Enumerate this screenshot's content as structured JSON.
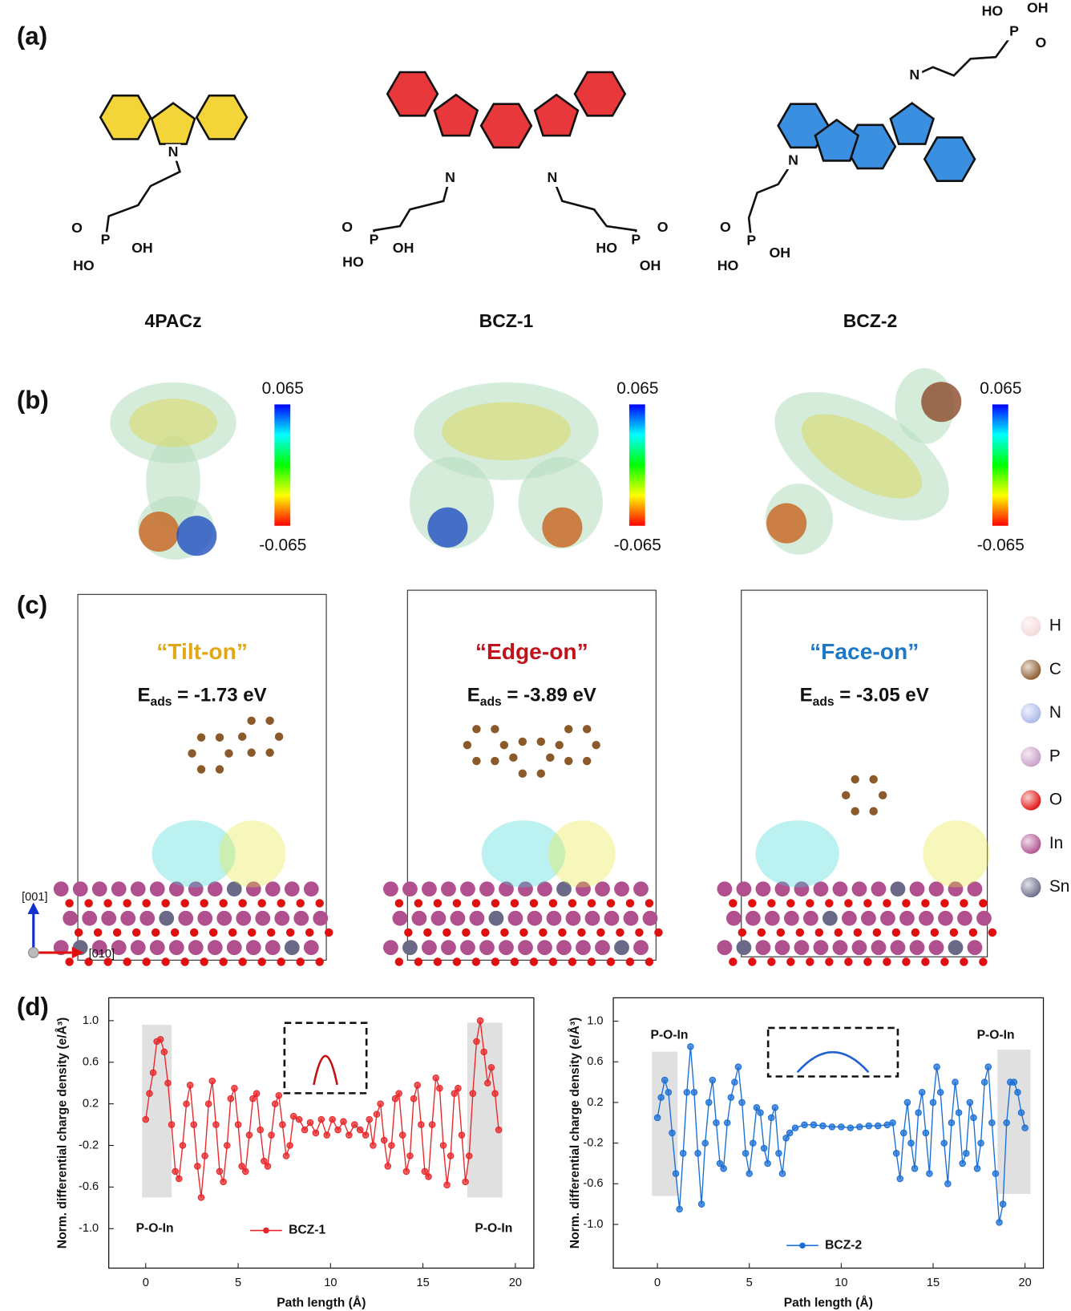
{
  "panel_labels": [
    "(a)",
    "(b)",
    "(c)",
    "(d)"
  ],
  "molecules": [
    {
      "name": "4PACz",
      "color": "#f3d53a",
      "atoms": [
        "N",
        "O",
        "P",
        "OH",
        "HO"
      ],
      "colorbar": {
        "max": 0.065,
        "min": -0.065
      },
      "adsorption": {
        "mode": "“Tilt-on”",
        "mode_color": "#e0a818",
        "energy_symbol": "E",
        "energy_subscript": "ads",
        "energy_text": " = -1.73 eV"
      }
    },
    {
      "name": "BCZ-1",
      "color": "#e8383b",
      "atoms": [
        "N",
        "N",
        "O",
        "P",
        "OH",
        "HO",
        "HO",
        "P",
        "O",
        "OH"
      ],
      "colorbar": {
        "max": 0.065,
        "min": -0.065
      },
      "adsorption": {
        "mode": "“Edge-on”",
        "mode_color": "#c0141c",
        "energy_symbol": "E",
        "energy_subscript": "ads",
        "energy_text": " = -3.89 eV"
      }
    },
    {
      "name": "BCZ-2",
      "color": "#3a8fe0",
      "atoms": [
        "N",
        "N",
        "O",
        "P",
        "OH",
        "HO",
        "HO",
        "OH",
        "P",
        "O"
      ],
      "colorbar": {
        "max": 0.065,
        "min": -0.065
      },
      "adsorption": {
        "mode": "“Face-on”",
        "mode_color": "#1e78c8",
        "energy_symbol": "E",
        "energy_subscript": "ads",
        "energy_text": " = -3.05 eV"
      }
    }
  ],
  "element_legend": [
    {
      "label": "H",
      "color": "#f4d8d8"
    },
    {
      "label": "C",
      "color": "#8b5a2b"
    },
    {
      "label": "N",
      "color": "#aab8e8"
    },
    {
      "label": "P",
      "color": "#c99cc6"
    },
    {
      "label": "O",
      "color": "#e01010"
    },
    {
      "label": "In",
      "color": "#b0508f"
    },
    {
      "label": "Sn",
      "color": "#6a6a88"
    }
  ],
  "axis_labels": [
    "[001]",
    "[010]"
  ],
  "chart_data": [
    {
      "type": "line",
      "xlabel": "Path length (Å)",
      "ylabel": "Norm. differential charge density (e/Å³)",
      "xlim": [
        -2,
        21
      ],
      "ylim": [
        -1.38,
        1.22
      ],
      "xticks": [
        0,
        5,
        10,
        15,
        20
      ],
      "yticks": [
        {
          "value": -1,
          "label": "-1.0"
        },
        -0.6,
        -0.2,
        0.2,
        0.6,
        {
          "value": 1,
          "label": "1.0"
        }
      ],
      "legend": "lower center",
      "annotations": [
        "P-O-In",
        "P-O-In"
      ],
      "highlights": [
        {
          "x": [
            -0.2,
            1.4
          ],
          "y": [
            -0.7,
            0.96
          ]
        },
        {
          "x": [
            17.4,
            19.3
          ],
          "y": [
            -0.7,
            0.98
          ]
        }
      ],
      "x": [
        0.0,
        0.2,
        0.4,
        0.6,
        0.8,
        1.0,
        1.2,
        1.4,
        1.6,
        1.8,
        2.0,
        2.2,
        2.4,
        2.6,
        2.8,
        3.0,
        3.2,
        3.4,
        3.6,
        3.8,
        4.0,
        4.2,
        4.4,
        4.6,
        4.8,
        5.0,
        5.2,
        5.4,
        5.6,
        5.8,
        6.0,
        6.2,
        6.4,
        6.6,
        6.8,
        7.0,
        7.2,
        7.4,
        7.6,
        7.8,
        8.0,
        8.3,
        8.6,
        8.9,
        9.2,
        9.5,
        9.8,
        10.1,
        10.4,
        10.7,
        11.0,
        11.3,
        11.6,
        11.9,
        12.1,
        12.3,
        12.5,
        12.7,
        12.9,
        13.1,
        13.3,
        13.5,
        13.7,
        13.9,
        14.1,
        14.3,
        14.5,
        14.7,
        14.9,
        15.1,
        15.3,
        15.5,
        15.7,
        15.9,
        16.1,
        16.3,
        16.5,
        16.7,
        16.9,
        17.1,
        17.3,
        17.5,
        17.7,
        17.9,
        18.1,
        18.3,
        18.5,
        18.7,
        18.9,
        19.1
      ],
      "series": [
        {
          "name": "BCZ-1",
          "color": "#e8262a",
          "values": [
            0.05,
            0.3,
            0.5,
            0.8,
            0.82,
            0.7,
            0.4,
            0.0,
            -0.45,
            -0.52,
            -0.2,
            0.2,
            0.38,
            0.0,
            -0.4,
            -0.7,
            -0.3,
            0.2,
            0.42,
            0.0,
            -0.45,
            -0.55,
            -0.2,
            0.25,
            0.35,
            0.0,
            -0.4,
            -0.45,
            -0.1,
            0.25,
            0.3,
            -0.05,
            -0.35,
            -0.4,
            -0.1,
            0.2,
            0.28,
            0.0,
            -0.3,
            -0.2,
            0.08,
            0.05,
            -0.05,
            0.02,
            -0.08,
            0.05,
            -0.1,
            0.05,
            -0.05,
            0.03,
            -0.1,
            0.0,
            -0.05,
            -0.1,
            0.05,
            -0.2,
            0.1,
            0.2,
            -0.15,
            -0.4,
            -0.2,
            0.25,
            0.3,
            -0.1,
            -0.45,
            -0.3,
            0.25,
            0.38,
            0.0,
            -0.45,
            -0.5,
            0.0,
            0.45,
            0.35,
            -0.2,
            -0.58,
            -0.3,
            0.3,
            0.35,
            -0.1,
            -0.55,
            -0.3,
            0.3,
            0.8,
            1.0,
            0.7,
            0.4,
            0.55,
            0.3,
            -0.05
          ]
        }
      ]
    },
    {
      "type": "line",
      "xlabel": "Path length (Å)",
      "ylabel": "Norm. differential charge density (e/Å³)",
      "xlim": [
        -2.4,
        21
      ],
      "ylim": [
        -1.43,
        1.23
      ],
      "xticks": [
        0,
        5,
        10,
        15,
        20
      ],
      "yticks": [
        {
          "value": -1,
          "label": "-1.0"
        },
        -0.6,
        -0.2,
        0.2,
        0.6,
        {
          "value": 1,
          "label": "1.0"
        }
      ],
      "legend": "lower center",
      "annotations": [
        "P-O-In",
        "P-O-In"
      ],
      "highlights": [
        {
          "x": [
            -0.3,
            1.1
          ],
          "y": [
            -0.72,
            0.7
          ]
        },
        {
          "x": [
            18.5,
            20.3
          ],
          "y": [
            -0.7,
            0.72
          ]
        }
      ],
      "x": [
        0.0,
        0.2,
        0.4,
        0.6,
        0.8,
        1.0,
        1.2,
        1.4,
        1.6,
        1.8,
        2.0,
        2.2,
        2.4,
        2.6,
        2.8,
        3.0,
        3.2,
        3.4,
        3.6,
        3.8,
        4.0,
        4.2,
        4.4,
        4.6,
        4.8,
        5.0,
        5.2,
        5.4,
        5.6,
        5.8,
        6.0,
        6.2,
        6.4,
        6.6,
        6.8,
        7.0,
        7.2,
        7.5,
        8.0,
        8.5,
        9.0,
        9.5,
        10.0,
        10.5,
        11.0,
        11.5,
        12.0,
        12.5,
        12.8,
        13.0,
        13.2,
        13.4,
        13.6,
        13.8,
        14.0,
        14.2,
        14.4,
        14.6,
        14.8,
        15.0,
        15.2,
        15.4,
        15.6,
        15.8,
        16.0,
        16.2,
        16.4,
        16.6,
        16.8,
        17.0,
        17.2,
        17.4,
        17.6,
        17.8,
        18.0,
        18.2,
        18.4,
        18.6,
        18.8,
        19.0,
        19.2,
        19.4,
        19.6,
        19.8,
        20.0
      ],
      "series": [
        {
          "name": "BCZ-2",
          "color": "#1a6fd6",
          "values": [
            0.05,
            0.25,
            0.42,
            0.3,
            -0.1,
            -0.5,
            -0.85,
            -0.3,
            0.3,
            0.75,
            0.3,
            -0.3,
            -0.8,
            -0.2,
            0.2,
            0.42,
            0.0,
            -0.4,
            -0.45,
            0.0,
            0.25,
            0.4,
            0.55,
            0.2,
            -0.3,
            -0.5,
            -0.2,
            0.15,
            0.1,
            -0.25,
            -0.4,
            0.05,
            0.15,
            -0.3,
            -0.5,
            -0.15,
            -0.1,
            -0.05,
            -0.02,
            -0.02,
            -0.03,
            -0.04,
            -0.04,
            -0.05,
            -0.04,
            -0.03,
            -0.03,
            -0.02,
            0.0,
            -0.3,
            -0.55,
            -0.1,
            0.2,
            -0.2,
            -0.45,
            0.1,
            0.3,
            -0.1,
            -0.5,
            0.2,
            0.55,
            0.3,
            -0.2,
            -0.6,
            0.0,
            0.4,
            0.1,
            -0.4,
            -0.3,
            0.2,
            0.05,
            -0.45,
            -0.2,
            0.4,
            0.55,
            0.0,
            -0.5,
            -0.98,
            -0.8,
            0.0,
            0.4,
            0.4,
            0.3,
            0.1,
            -0.05
          ]
        }
      ]
    }
  ]
}
